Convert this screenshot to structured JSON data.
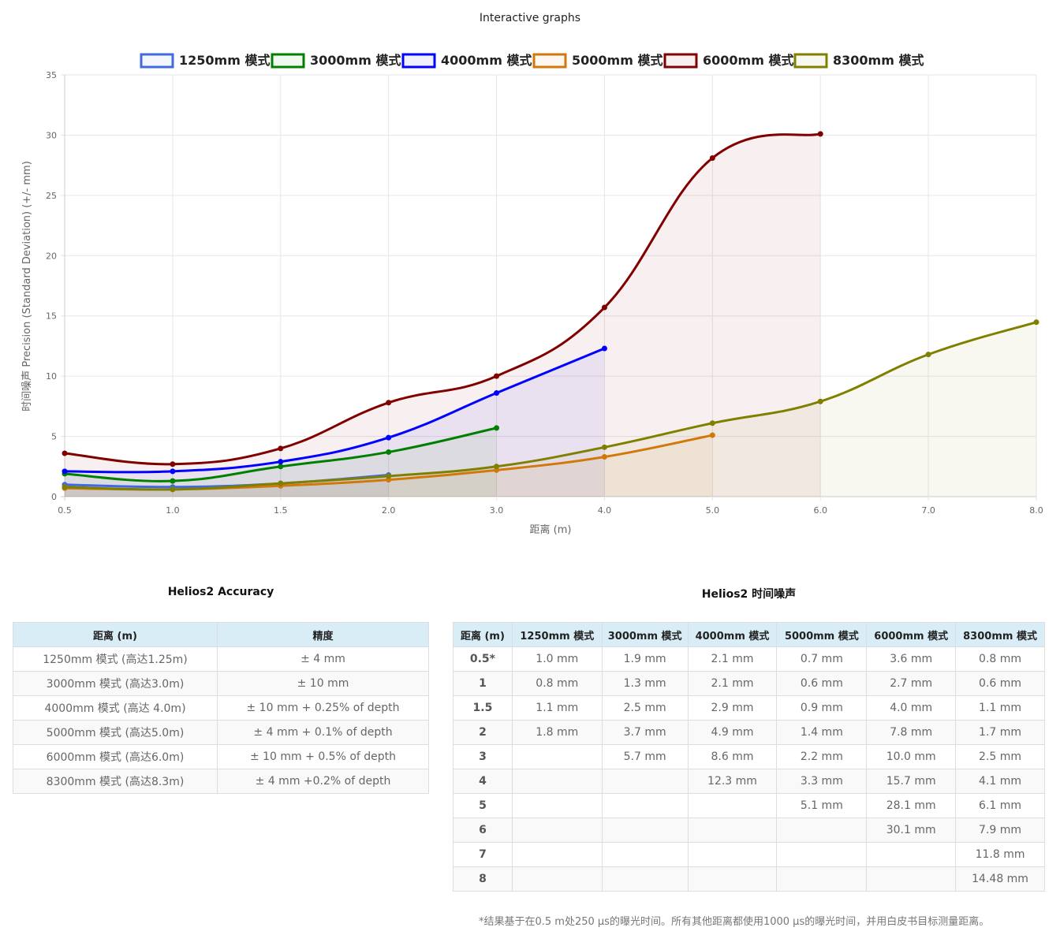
{
  "title": "Interactive graphs",
  "chart_data": {
    "type": "line",
    "title": "Interactive graphs",
    "xlabel": "距离 (m)",
    "ylabel": "时间噪声 Precision (Standard Deviation) (+/- mm)",
    "categories": [
      "0.5",
      "1.0",
      "1.5",
      "2.0",
      "3.0",
      "4.0",
      "5.0",
      "6.0",
      "7.0",
      "8.0"
    ],
    "ylim": [
      0,
      35
    ],
    "yticks": [
      "0",
      "5",
      "10",
      "15",
      "20",
      "25",
      "30",
      "35"
    ],
    "grid": true,
    "legend": "top",
    "series": [
      {
        "name": "1250mm 模式",
        "color": "#4169e1",
        "values": [
          1.0,
          0.8,
          1.1,
          1.8,
          null,
          null,
          null,
          null,
          null,
          null
        ]
      },
      {
        "name": "3000mm 模式",
        "color": "#008000",
        "values": [
          1.9,
          1.3,
          2.5,
          3.7,
          5.7,
          null,
          null,
          null,
          null,
          null
        ]
      },
      {
        "name": "4000mm 模式",
        "color": "#0000ff",
        "values": [
          2.1,
          2.1,
          2.9,
          4.9,
          8.6,
          12.3,
          null,
          null,
          null,
          null
        ]
      },
      {
        "name": "5000mm 模式",
        "color": "#d2780a",
        "values": [
          0.7,
          0.6,
          0.9,
          1.4,
          2.2,
          3.3,
          5.1,
          null,
          null,
          null
        ]
      },
      {
        "name": "6000mm 模式",
        "color": "#800000",
        "values": [
          3.6,
          2.7,
          4.0,
          7.8,
          10.0,
          15.7,
          28.1,
          30.1,
          null,
          null
        ]
      },
      {
        "name": "8300mm 模式",
        "color": "#808000",
        "values": [
          0.8,
          0.6,
          1.1,
          1.7,
          2.5,
          4.1,
          6.1,
          7.9,
          11.8,
          14.48
        ]
      }
    ]
  },
  "accuracy": {
    "title": "Helios2 Accuracy",
    "headers": [
      "距离 (m)",
      "精度"
    ],
    "rows": [
      [
        "1250mm 模式 (高达1.25m)",
        "± 4 mm"
      ],
      [
        "3000mm 模式 (高达3.0m)",
        "± 10 mm"
      ],
      [
        "4000mm 模式 (高达 4.0m)",
        "± 10 mm + 0.25% of depth"
      ],
      [
        "5000mm 模式 (高达5.0m)",
        "± 4 mm + 0.1% of depth"
      ],
      [
        "6000mm 模式 (高达6.0m)",
        "± 10 mm + 0.5% of depth"
      ],
      [
        "8300mm 模式 (高达8.3m)",
        "± 4 mm +0.2% of depth"
      ]
    ]
  },
  "noise": {
    "title": "Helios2 时间噪声",
    "headers": [
      "距离 (m)",
      "1250mm 模式",
      "3000mm 模式",
      "4000mm 模式",
      "5000mm 模式",
      "6000mm 模式",
      "8300mm 模式"
    ],
    "rows": [
      [
        "0.5*",
        "1.0 mm",
        "1.9 mm",
        "2.1 mm",
        "0.7 mm",
        "3.6 mm",
        "0.8 mm"
      ],
      [
        "1",
        "0.8 mm",
        "1.3 mm",
        "2.1 mm",
        "0.6 mm",
        "2.7 mm",
        "0.6 mm"
      ],
      [
        "1.5",
        "1.1 mm",
        "2.5 mm",
        "2.9 mm",
        "0.9 mm",
        "4.0 mm",
        "1.1 mm"
      ],
      [
        "2",
        "1.8 mm",
        "3.7 mm",
        "4.9 mm",
        "1.4 mm",
        "7.8 mm",
        "1.7 mm"
      ],
      [
        "3",
        "",
        "5.7 mm",
        "8.6 mm",
        "2.2 mm",
        "10.0 mm",
        "2.5 mm"
      ],
      [
        "4",
        "",
        "",
        "12.3 mm",
        "3.3 mm",
        "15.7 mm",
        "4.1 mm"
      ],
      [
        "5",
        "",
        "",
        "",
        "5.1 mm",
        "28.1 mm",
        "6.1 mm"
      ],
      [
        "6",
        "",
        "",
        "",
        "",
        "30.1 mm",
        "7.9 mm"
      ],
      [
        "7",
        "",
        "",
        "",
        "",
        "",
        "11.8 mm"
      ],
      [
        "8",
        "",
        "",
        "",
        "",
        "",
        "14.48 mm"
      ]
    ]
  },
  "footnote": "*结果基于在0.5 m处250 µs的曝光时间。所有其他距离都使用1000 µs的曝光时间，并用白皮书目标测量距离。"
}
